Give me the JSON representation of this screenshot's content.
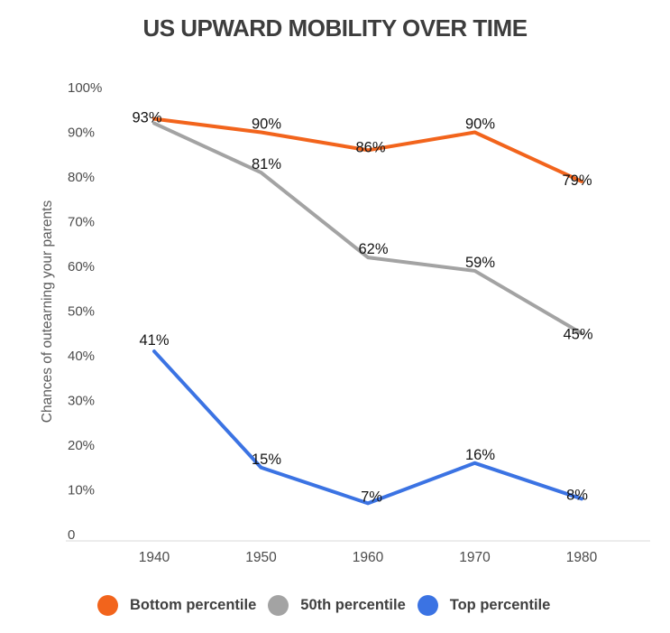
{
  "title": "US UPWARD MOBILITY OVER TIME",
  "chart_data": {
    "type": "line",
    "title": "US UPWARD MOBILITY OVER TIME",
    "xlabel": "",
    "ylabel": "Chances of outearning your parents",
    "x": [
      1940,
      1950,
      1960,
      1970,
      1980
    ],
    "x_ticks": [
      "1940",
      "1950",
      "1960",
      "1970",
      "1980"
    ],
    "y_ticks": [
      "100%",
      "90%",
      "80%",
      "70%",
      "60%",
      "50%",
      "40%",
      "30%",
      "20%",
      "10%",
      "0"
    ],
    "ylim": [
      0,
      100
    ],
    "grid": false,
    "legend_position": "bottom",
    "series": [
      {
        "name": "Bottom percentile",
        "color": "#f2641c",
        "values": [
          93,
          90,
          86,
          90,
          79
        ],
        "point_labels": [
          "93%",
          "90%",
          "86%",
          "90%",
          "79%"
        ]
      },
      {
        "name": "50th percentile",
        "color": "#a3a3a3",
        "values": [
          92,
          81,
          62,
          59,
          45
        ],
        "point_labels": [
          "",
          "81%",
          "62%",
          "59%",
          "45%"
        ]
      },
      {
        "name": "Top percentile",
        "color": "#3b73e3",
        "values": [
          41,
          15,
          7,
          16,
          8
        ],
        "point_labels": [
          "41%",
          "15%",
          "7%",
          "16%",
          "8%"
        ]
      }
    ],
    "colors": {
      "title_text": "#3d3d3d",
      "axis_tick_text": "#4b4b4b",
      "axis_title_text": "#5b5b5b",
      "data_label_text": "#141414",
      "axis_line": "#dadada",
      "background": "#ffffff"
    }
  }
}
